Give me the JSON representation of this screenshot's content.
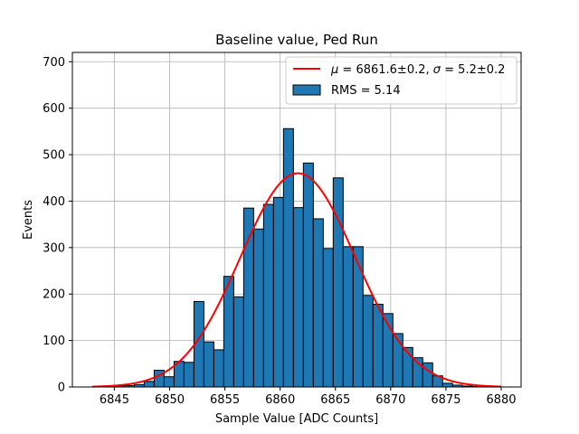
{
  "chart_data": {
    "type": "bar",
    "title": "Baseline value, Ped Run",
    "xlabel": "Sample Value [ADC Counts]",
    "ylabel": "Events",
    "xlim": [
      6841.2,
      6881.8
    ],
    "ylim": [
      0,
      720
    ],
    "xticks": [
      6845,
      6850,
      6855,
      6860,
      6865,
      6870,
      6875,
      6880
    ],
    "yticks": [
      0,
      100,
      200,
      300,
      400,
      500,
      600,
      700
    ],
    "grid": true,
    "legend_position": "top-right",
    "histogram": {
      "name": "RMS = 5.14",
      "color": "#1f77b4",
      "edgecolor": "#000000",
      "bin_width": 0.9,
      "bin_edges": [
        6845.0,
        6845.9,
        6846.8,
        6847.7,
        6848.6,
        6849.5,
        6850.4,
        6851.3,
        6852.2,
        6853.1,
        6854.0,
        6854.9,
        6855.8,
        6856.7,
        6857.6,
        6858.5,
        6859.4,
        6860.3,
        6861.2,
        6862.1,
        6863.0,
        6863.9,
        6864.8,
        6865.7,
        6866.6,
        6867.5,
        6868.4,
        6869.3,
        6870.2,
        6871.1,
        6872.0,
        6872.9,
        6873.8,
        6874.7,
        6875.6,
        6876.5,
        6877.4,
        6878.3
      ],
      "counts": [
        2,
        3,
        5,
        12,
        36,
        22,
        55,
        53,
        184,
        97,
        80,
        238,
        194,
        385,
        340,
        393,
        408,
        556,
        386,
        482,
        362,
        298,
        450,
        302,
        302,
        197,
        178,
        158,
        115,
        85,
        63,
        52,
        24,
        8,
        4,
        2,
        1
      ]
    },
    "fit": {
      "name": "μ = 6861.6±0.2, σ = 5.2±0.2",
      "name_tex": {
        "mu": "μ",
        "mu_val": " = 6861.6±0.2, ",
        "sigma": "σ",
        "sigma_val": " = 5.2±0.2"
      },
      "color": "#ff0000",
      "mu": 6861.6,
      "sigma": 5.2,
      "amplitude": 460,
      "x_range": [
        6843,
        6880
      ]
    }
  }
}
